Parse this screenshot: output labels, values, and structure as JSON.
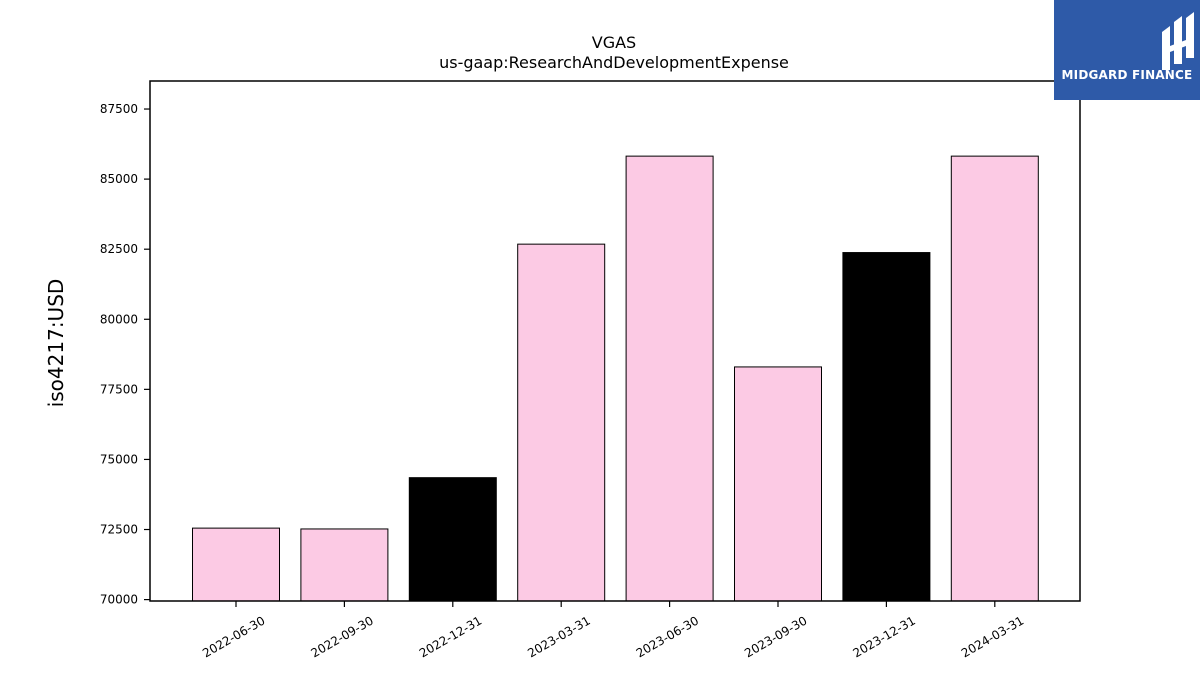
{
  "chart_data": {
    "type": "bar",
    "title": "VGAS",
    "subtitle": "us-gaap:ResearchAndDevelopmentExpense",
    "xlabel": "",
    "ylabel": "iso4217:USD",
    "categories": [
      "2022-06-30",
      "2022-09-30",
      "2022-12-31",
      "2023-03-31",
      "2023-06-30",
      "2023-09-30",
      "2023-12-31",
      "2024-03-31"
    ],
    "values": [
      72550,
      72520,
      74350,
      82680,
      85820,
      78300,
      82380,
      85820
    ],
    "bar_colors": [
      "#fccae4",
      "#fccae4",
      "#000000",
      "#fccae4",
      "#fccae4",
      "#fccae4",
      "#000000",
      "#fccae4"
    ],
    "ylim": [
      69950,
      88500
    ],
    "yticks": [
      70000,
      72500,
      75000,
      77500,
      80000,
      82500,
      85000,
      87500
    ],
    "grid": false,
    "legend": "none"
  },
  "logo": {
    "brand": "MIDGARD FINANCE",
    "bg_color": "#2e5aa8"
  }
}
